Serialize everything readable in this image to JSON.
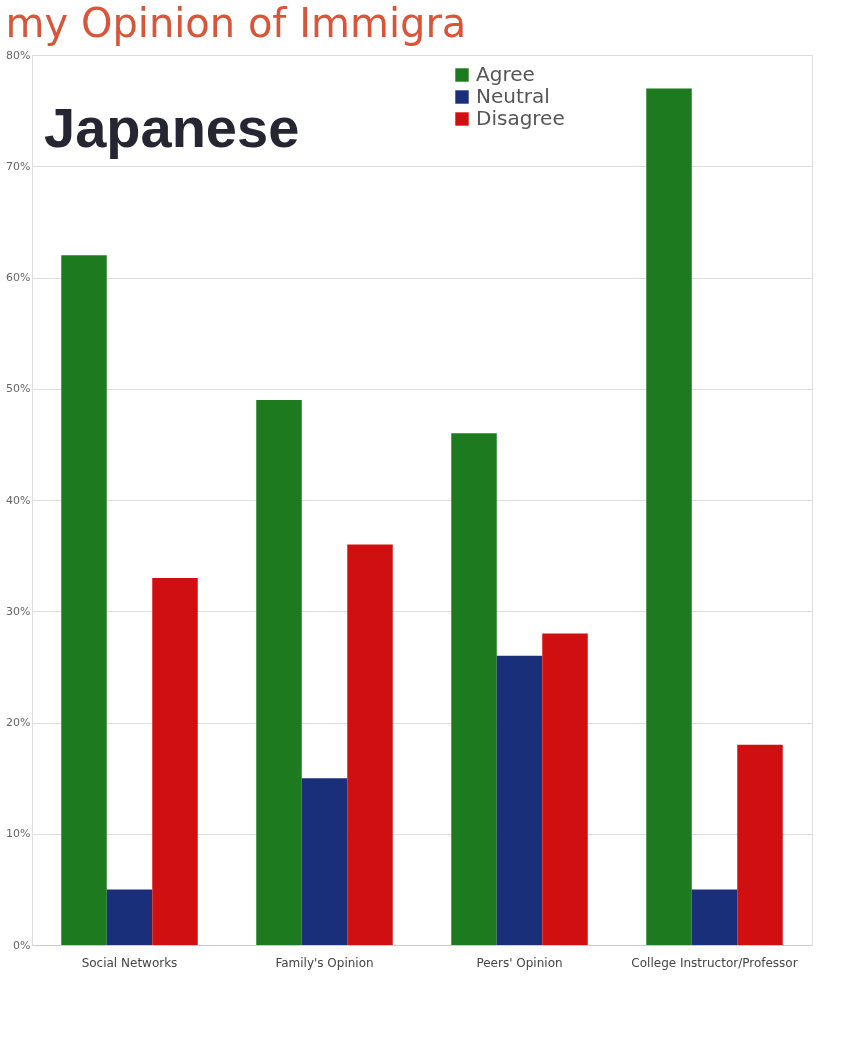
{
  "chart_data": {
    "type": "bar",
    "title": "my Opinion of Immigra",
    "annotations": [
      "Japanese"
    ],
    "categories": [
      "Social Networks",
      "Family's Opinion",
      "Peers' Opinion",
      "College Instructor/Professor"
    ],
    "series": [
      {
        "name": "Agree",
        "color": "#1e7a1e",
        "values": [
          62,
          49,
          46,
          77
        ]
      },
      {
        "name": "Neutral",
        "color": "#1a2f7a",
        "values": [
          5,
          15,
          26,
          5
        ]
      },
      {
        "name": "Disagree",
        "color": "#d01010",
        "values": [
          33,
          36,
          28,
          18
        ]
      }
    ],
    "ylim": [
      0,
      80
    ],
    "yticks": [
      {
        "value": 0,
        "label": "0%"
      },
      {
        "value": 10,
        "label": "10%"
      },
      {
        "value": 20,
        "label": "20%"
      },
      {
        "value": 30,
        "label": "30%"
      },
      {
        "value": 40,
        "label": "40%"
      },
      {
        "value": 50,
        "label": "50%"
      },
      {
        "value": 60,
        "label": "60%"
      },
      {
        "value": 70,
        "label": "70%"
      },
      {
        "value": 80,
        "label": "80%"
      }
    ],
    "grid": "y",
    "legend": "top"
  }
}
